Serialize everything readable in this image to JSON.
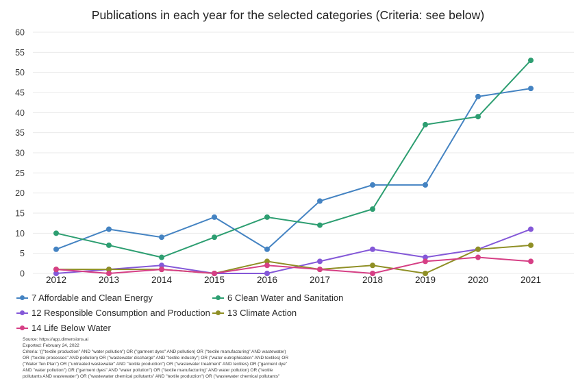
{
  "title": "Publications in each year for the selected categories (Criteria: see below)",
  "chart_data": {
    "type": "line",
    "title": "Publications in each year for the selected categories (Criteria: see below)",
    "x": [
      2012,
      2013,
      2014,
      2015,
      2016,
      2017,
      2018,
      2019,
      2020,
      2021
    ],
    "series": [
      {
        "name": "7 Affordable and Clean Energy",
        "color": "#4483c2",
        "values": [
          6,
          11,
          9,
          14,
          6,
          18,
          22,
          22,
          44,
          46
        ]
      },
      {
        "name": "6 Clean Water and Sanitation",
        "color": "#2d9e71",
        "values": [
          10,
          7,
          4,
          9,
          14,
          12,
          16,
          37,
          39,
          53
        ]
      },
      {
        "name": "12 Responsible Consumption and Production",
        "color": "#8458d8",
        "values": [
          0,
          1,
          2,
          0,
          0,
          3,
          6,
          4,
          6,
          11
        ]
      },
      {
        "name": "13 Climate Action",
        "color": "#8f8f25",
        "values": [
          1,
          1,
          1,
          0,
          3,
          1,
          2,
          0,
          6,
          7
        ]
      },
      {
        "name": "14 Life Below Water",
        "color": "#d63f85",
        "values": [
          1,
          0,
          1,
          0,
          2,
          1,
          0,
          3,
          4,
          3
        ]
      }
    ],
    "xlabel": "",
    "ylabel": "",
    "ylim": [
      0,
      60
    ],
    "ytick_step": 5,
    "grid": true,
    "legend_position": "bottom-left"
  },
  "footer": {
    "lines": [
      "Source: https://app.dimensions.ai",
      "Exported: February 24, 2022",
      "Criteria: '((\"textile production\" AND \"water pollution\") OR (\"garment dyes\" AND pollution) OR (\"textile manufacturing\" AND wastewater)",
      "OR (\"textile processes\" AND pollution) OR (\"wastewater discharge\" AND \"textile industry\") OR (\"water eutrophication\" AND textiles) OR",
      "(\"Water Ten Plan\") OR (\"untreated wastewater\" AND \"textile production\") OR (\"wastewater treatment\" AND textiles) OR (\"garment dye\"",
      "AND \"water pollution\") OR (\"garment dyes\" AND \"water pollution\") OR (\"textile manufacturing\" AND water pollution) OR (\"textile",
      "pollutants AND wastewater\") OR (\"wastewater chemical pollutants\" AND \"textile production\") OR (\"wastewater chemical pollutants\""
    ]
  }
}
